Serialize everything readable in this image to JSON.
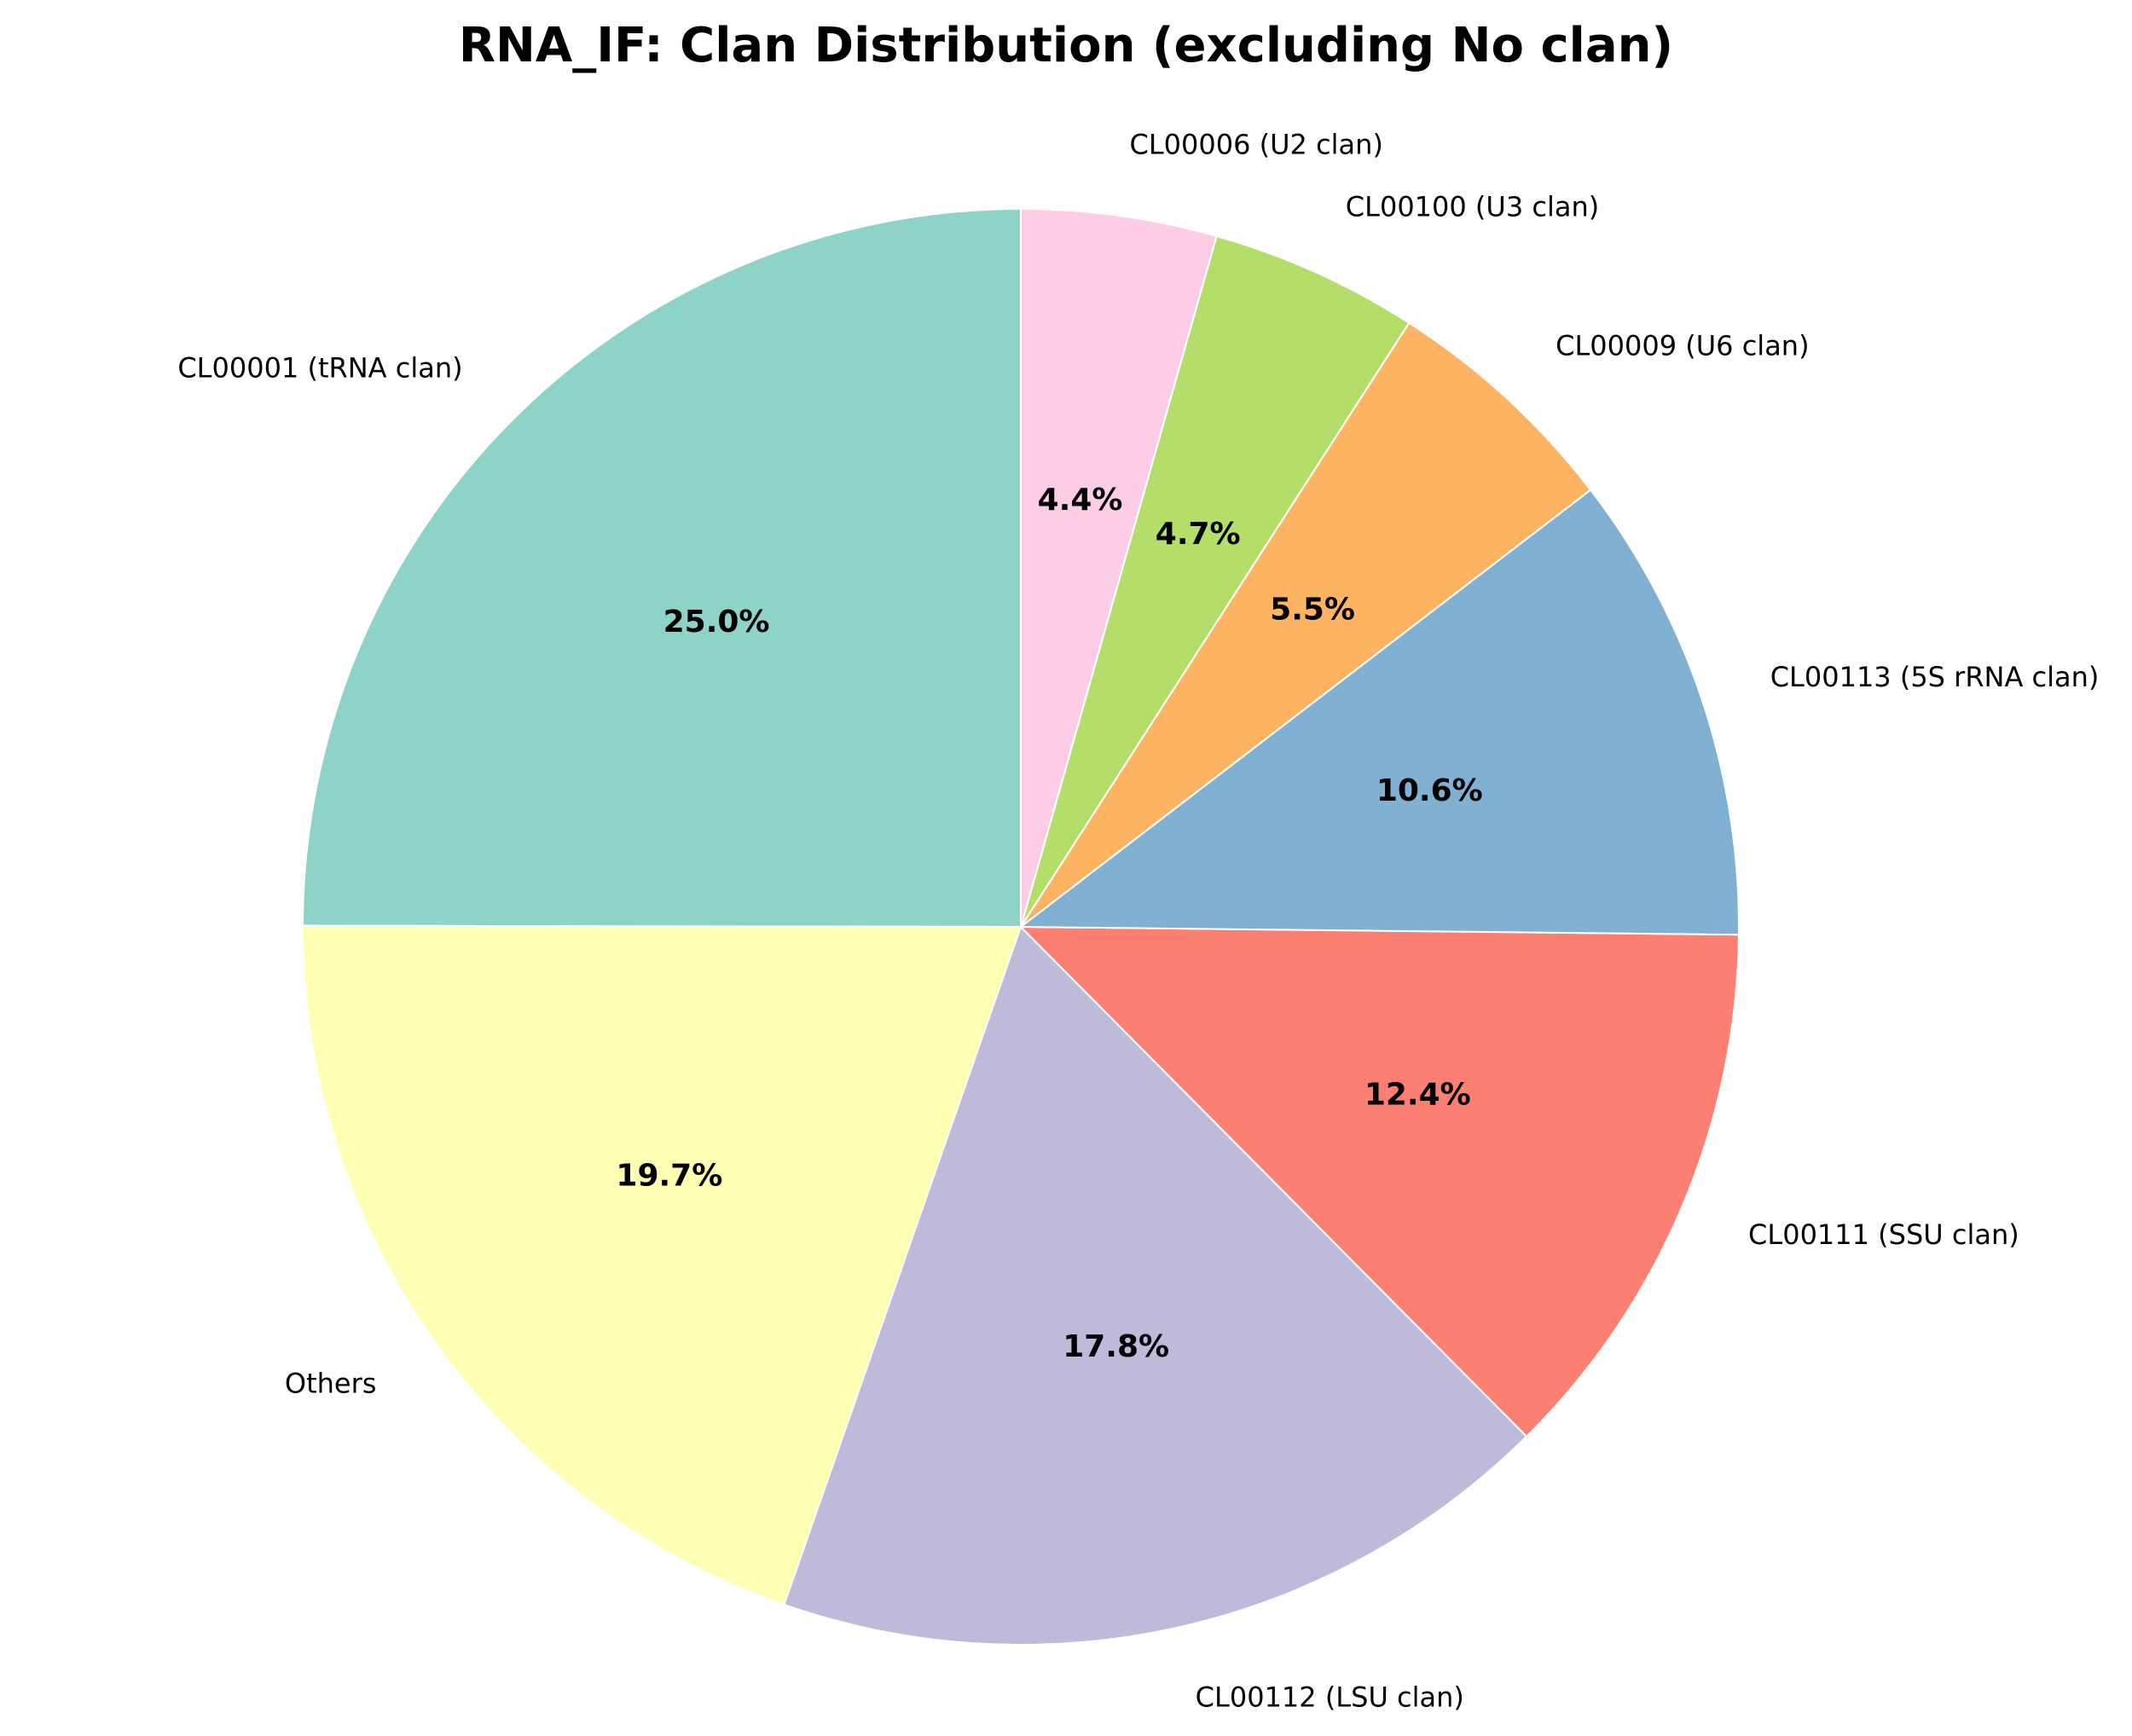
{
  "chart_data": {
    "type": "pie",
    "title": "RNA_IF: Clan Distribution (excluding No clan)",
    "start_angle_deg": 90,
    "direction": "counterclockwise",
    "slices": [
      {
        "label": "CL00001 (tRNA clan)",
        "value": 25.0,
        "pct_label": "25.0%",
        "color": "#8dd3c7"
      },
      {
        "label": "Others",
        "value": 19.7,
        "pct_label": "19.7%",
        "color": "#ffffb3"
      },
      {
        "label": "CL00112 (LSU clan)",
        "value": 17.8,
        "pct_label": "17.8%",
        "color": "#bebada"
      },
      {
        "label": "CL00111 (SSU clan)",
        "value": 12.4,
        "pct_label": "12.4%",
        "color": "#fb8072"
      },
      {
        "label": "CL00113 (5S rRNA clan)",
        "value": 10.6,
        "pct_label": "10.6%",
        "color": "#80b1d3"
      },
      {
        "label": "CL00009 (U6 clan)",
        "value": 5.5,
        "pct_label": "5.5%",
        "color": "#fdb462"
      },
      {
        "label": "CL00100 (U3 clan)",
        "value": 4.7,
        "pct_label": "4.7%",
        "color": "#b3de69"
      },
      {
        "label": "CL00006 (U2 clan)",
        "value": 4.4,
        "pct_label": "4.4%",
        "color": "#fccde5"
      }
    ]
  }
}
